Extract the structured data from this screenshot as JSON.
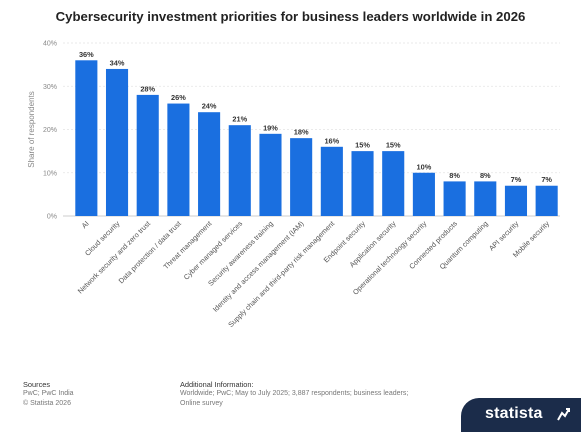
{
  "chart_data": {
    "type": "bar",
    "title": "Cybersecurity investment priorities for business leaders worldwide in 2026",
    "ylabel": "Share of respondents",
    "xlabel": "",
    "ylim": [
      0,
      40
    ],
    "yticks": [
      "0%",
      "10%",
      "20%",
      "30%",
      "40%"
    ],
    "categories": [
      "AI",
      "Cloud security",
      "Network security and zero trust",
      "Data protection / data trust",
      "Threat management",
      "Cyber managed services",
      "Security awareness training",
      "Identity and access management (IAM)",
      "Supply chain and third-party risk management",
      "Endpoint security",
      "Application security",
      "Operational technology security",
      "Connected products",
      "Quantum computing",
      "API security",
      "Mobile security"
    ],
    "values": [
      36,
      34,
      28,
      26,
      24,
      21,
      19,
      18,
      16,
      15,
      15,
      10,
      8,
      8,
      7,
      7
    ],
    "value_labels": [
      "36%",
      "34%",
      "28%",
      "26%",
      "24%",
      "21%",
      "19%",
      "18%",
      "16%",
      "15%",
      "15%",
      "10%",
      "8%",
      "8%",
      "7%",
      "7%"
    ],
    "grid": true,
    "bar_color": "#1a6fe0"
  },
  "footer": {
    "sources_heading": "Sources",
    "sources_line1": "PwC; PwC India",
    "sources_line2": "© Statista 2026",
    "info_heading": "Additional Information:",
    "info_line1": "Worldwide; PwC; May to July 2025; 3,887 respondents; business leaders;",
    "info_line2": "Online survey"
  },
  "brand": {
    "name": "statista",
    "icon": "statista-logo-icon",
    "color": "#1b2c4a"
  }
}
